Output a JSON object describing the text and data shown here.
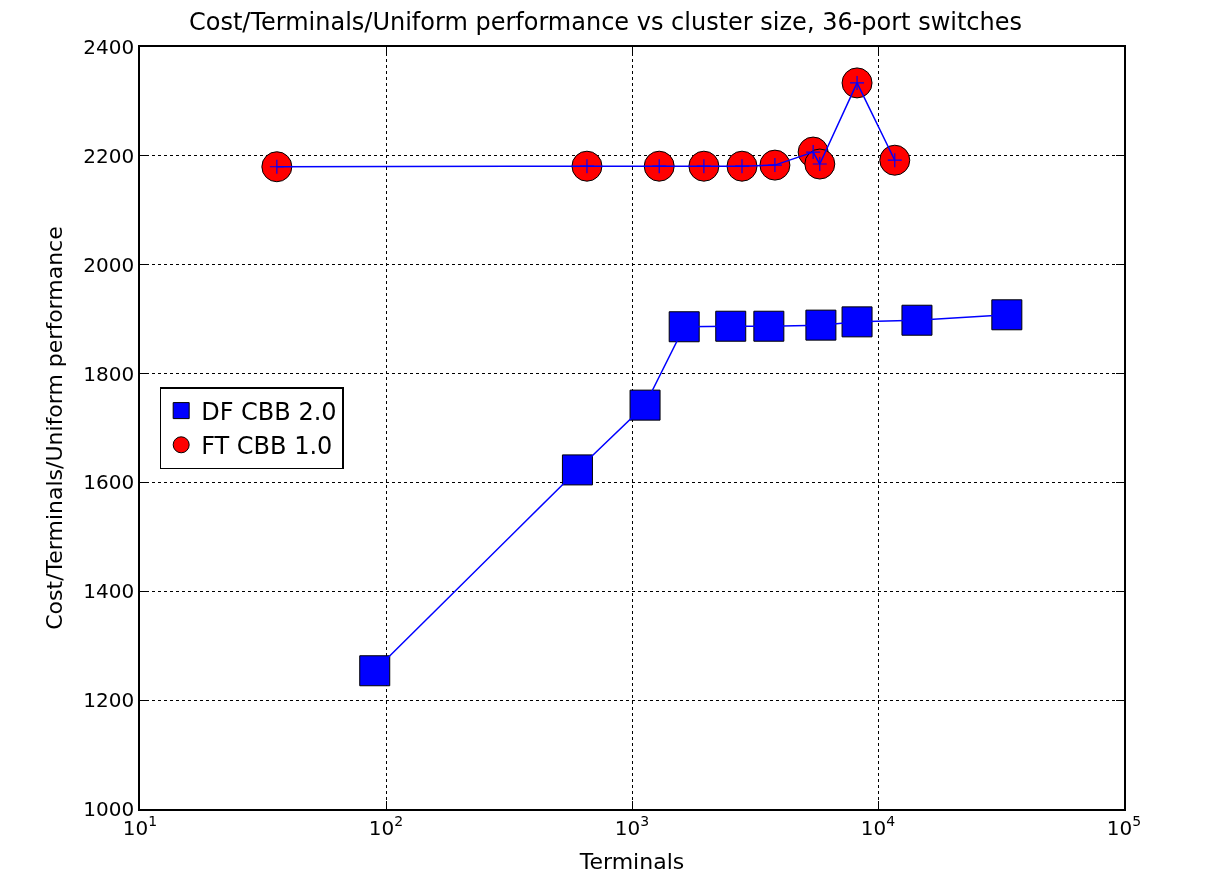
{
  "chart_data": {
    "type": "line",
    "title": "Cost/Terminals/Uniform performance vs cluster size, 36-port switches",
    "xlabel": "Terminals",
    "ylabel": "Cost/Terminals/Uniform performance",
    "log": "x",
    "xlim": [
      10,
      100000
    ],
    "ylim": [
      1000,
      2400
    ],
    "xticks": [
      {
        "value": 10,
        "label": "10$^{1}$"
      },
      {
        "value": 100,
        "label": "10$^{2}$"
      },
      {
        "value": 1000,
        "label": "10$^{3}$"
      },
      {
        "value": 10000,
        "label": "10$^{4}$"
      },
      {
        "value": 100000,
        "label": "10$^{5}$"
      }
    ],
    "yticks": [
      1000,
      1200,
      1400,
      1600,
      1800,
      2000,
      2200,
      2400
    ],
    "grid": true,
    "legend": "left",
    "series": [
      {
        "type": "scatter",
        "name": "DF CBB 2.0",
        "color": "#0000ff",
        "marker": "square",
        "x": [
          90,
          600,
          1130,
          1630,
          2520,
          3600,
          5860,
          8220,
          14400,
          33400
        ],
        "values": [
          1254,
          1623,
          1742,
          1886,
          1887,
          1887,
          1889,
          1895,
          1898,
          1908
        ]
      },
      {
        "type": "scatter",
        "name": "FT CBB 1.0",
        "color": "#ff0000",
        "marker": "circle",
        "x": [
          36,
          656,
          1290,
          1960,
          2800,
          3810,
          5450,
          5800,
          8220,
          11700
        ],
        "values": [
          2180,
          2181,
          2181,
          2181,
          2181,
          2183,
          2207,
          2185,
          2334,
          2192
        ]
      },
      {
        "color": "#0000ff",
        "marker": "cross",
        "x": [
          90,
          600,
          1130,
          1630,
          2520,
          3600,
          5860,
          8220,
          14400,
          33400
        ],
        "values": [
          1254,
          1623,
          1742,
          1886,
          1887,
          1887,
          1889,
          1895,
          1898,
          1908
        ]
      },
      {
        "color": "#0000ff",
        "marker": "cross",
        "x": [
          36,
          656,
          1290,
          1960,
          2800,
          3810,
          5450,
          5800,
          8220,
          11700
        ],
        "values": [
          2180,
          2181,
          2181,
          2181,
          2181,
          2183,
          2207,
          2185,
          2334,
          2192
        ]
      }
    ]
  }
}
